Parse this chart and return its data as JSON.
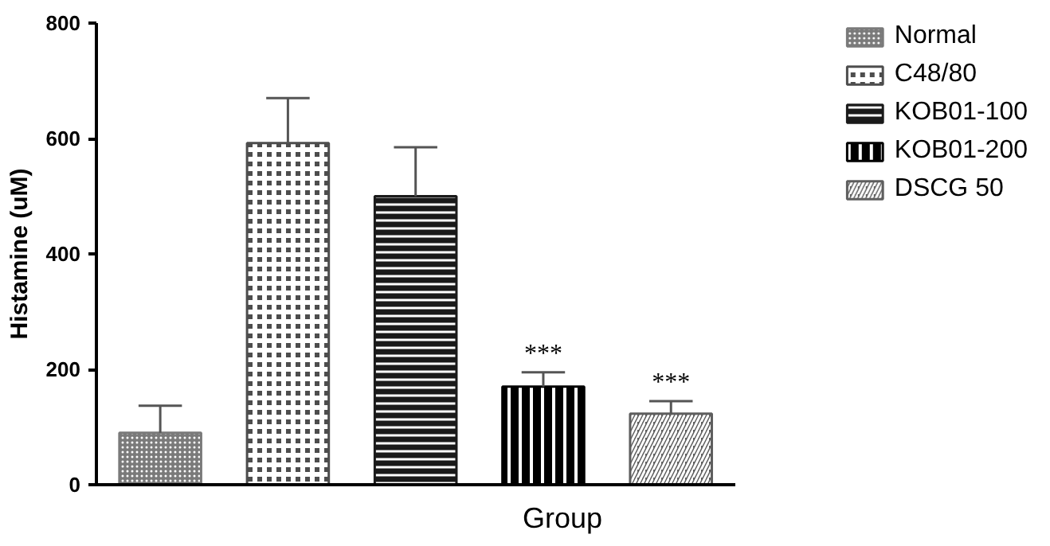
{
  "chart_data": {
    "type": "bar",
    "xlabel": "Group",
    "ylabel": "Histamine (uM)",
    "categories": [
      null,
      null,
      null,
      null,
      null
    ],
    "ylim": [
      0,
      800
    ],
    "yticks": [
      0,
      200,
      400,
      600,
      800
    ],
    "grid": false,
    "legend": "right",
    "series": [
      {
        "name": "Normal",
        "color": "#7a7a7a",
        "values": [
          90,
          null,
          null,
          null,
          null
        ],
        "errors": [
          [
            90,
            137
          ],
          null,
          null,
          null,
          null
        ]
      },
      {
        "name": "C48/80",
        "color": "#4d4d4d",
        "values": [
          null,
          592,
          null,
          null,
          null
        ],
        "errors": [
          null,
          [
            592,
            670
          ],
          null,
          null,
          null
        ]
      },
      {
        "name": "KOB01-100",
        "color": "#1a1a1a",
        "values": [
          null,
          null,
          500,
          null,
          null
        ],
        "errors": [
          null,
          null,
          [
            500,
            585
          ],
          null,
          null
        ]
      },
      {
        "name": "KOB01-200",
        "color": "#000000",
        "values": [
          null,
          null,
          null,
          170,
          null
        ],
        "errors": [
          null,
          null,
          null,
          [
            170,
            195
          ],
          null
        ]
      },
      {
        "name": "DSCG 50",
        "color": "#5e5e5e",
        "values": [
          null,
          null,
          null,
          null,
          123
        ],
        "errors": [
          null,
          null,
          null,
          null,
          [
            123,
            145
          ]
        ]
      }
    ],
    "annotations": [
      "***",
      "***"
    ]
  }
}
